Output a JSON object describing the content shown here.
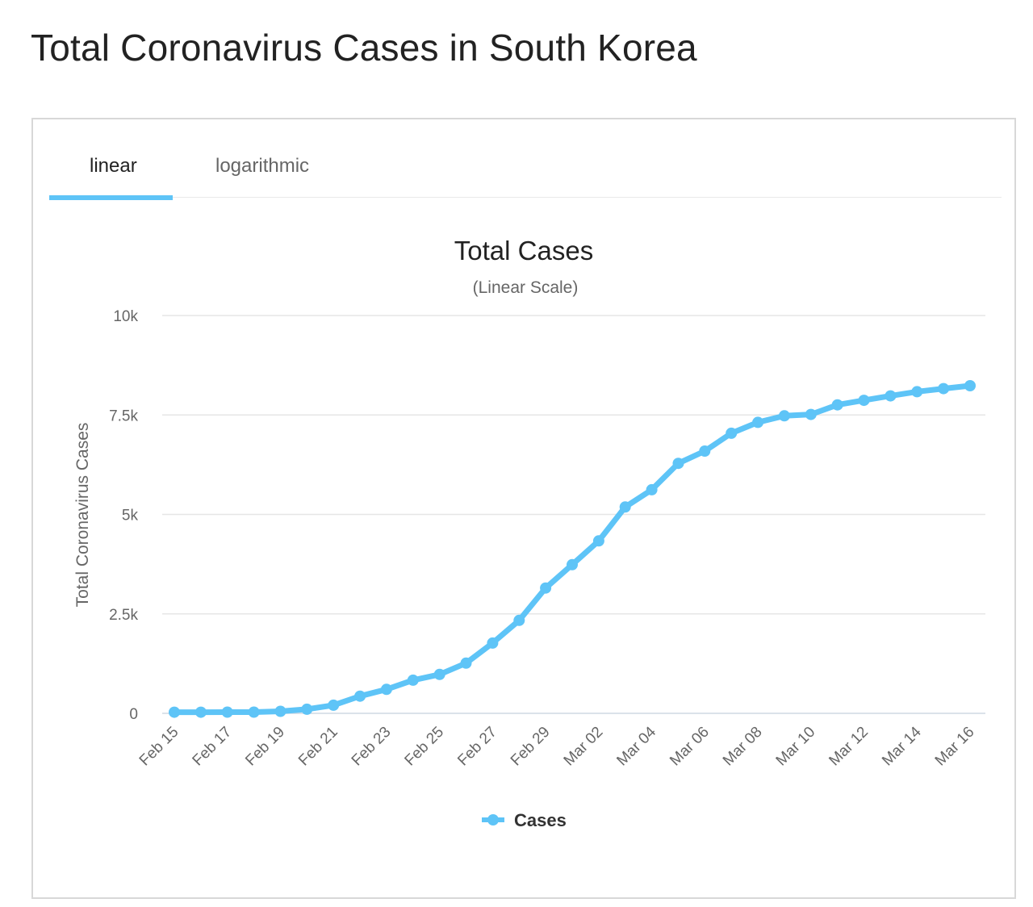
{
  "page": {
    "title": "Total Coronavirus Cases in South Korea"
  },
  "tabs": [
    {
      "label": "linear",
      "active": true
    },
    {
      "label": "logarithmic",
      "active": false
    }
  ],
  "colors": {
    "series": "#5ec4f7",
    "grid": "#e6e6e6",
    "axis_text": "#666666",
    "title_text": "#222222"
  },
  "chart_data": {
    "type": "line",
    "title": "Total Cases",
    "subtitle": "(Linear Scale)",
    "ylabel": "Total Coronavirus Cases",
    "xlabel": "",
    "ylim": [
      0,
      10000
    ],
    "yticks": [
      {
        "value": 0,
        "label": "0"
      },
      {
        "value": 2500,
        "label": "2.5k"
      },
      {
        "value": 5000,
        "label": "5k"
      },
      {
        "value": 7500,
        "label": "7.5k"
      },
      {
        "value": 10000,
        "label": "10k"
      }
    ],
    "categories": [
      "Feb 15",
      "Feb 16",
      "Feb 17",
      "Feb 18",
      "Feb 19",
      "Feb 20",
      "Feb 21",
      "Feb 22",
      "Feb 23",
      "Feb 24",
      "Feb 25",
      "Feb 26",
      "Feb 27",
      "Feb 28",
      "Feb 29",
      "Mar 01",
      "Mar 02",
      "Mar 03",
      "Mar 04",
      "Mar 05",
      "Mar 06",
      "Mar 07",
      "Mar 08",
      "Mar 09",
      "Mar 10",
      "Mar 11",
      "Mar 12",
      "Mar 13",
      "Mar 14",
      "Mar 15",
      "Mar 16"
    ],
    "xtick_labels": [
      "Feb 15",
      "Feb 17",
      "Feb 19",
      "Feb 21",
      "Feb 23",
      "Feb 25",
      "Feb 27",
      "Feb 29",
      "Mar 02",
      "Mar 04",
      "Mar 06",
      "Mar 08",
      "Mar 10",
      "Mar 12",
      "Mar 14",
      "Mar 16"
    ],
    "series": [
      {
        "name": "Cases",
        "values": [
          28,
          29,
          30,
          31,
          51,
          104,
          204,
          433,
          602,
          833,
          977,
          1261,
          1766,
          2337,
          3150,
          3736,
          4335,
          5186,
          5621,
          6284,
          6593,
          7041,
          7314,
          7478,
          7513,
          7755,
          7869,
          7979,
          8086,
          8162,
          8236
        ]
      }
    ],
    "legend": {
      "label": "Cases",
      "position": "bottom-center"
    },
    "grid": true
  }
}
